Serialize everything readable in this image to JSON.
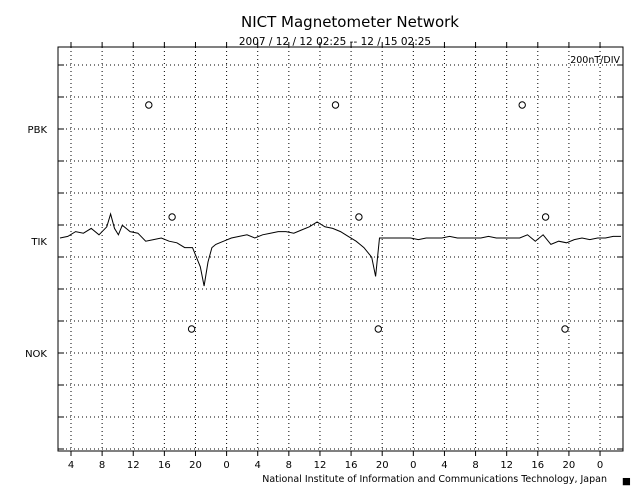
{
  "chart_data": {
    "type": "line",
    "title": "NICT Magnetometer Network",
    "subtitle": "2007 / 12 / 12   02:25 -- 12 / 15   02:25",
    "scale_label": "200nT/DIV",
    "stations": [
      "PBK",
      "TIK",
      "NOK"
    ],
    "x_tick_labels": [
      "4",
      "8",
      "12",
      "16",
      "20",
      "0",
      "4",
      "8",
      "12",
      "16",
      "20",
      "0",
      "4",
      "8",
      "12",
      "16",
      "20",
      "0"
    ],
    "x_range_hours": [
      0,
      72
    ],
    "grid": true,
    "markers": {
      "PBK": [
        10,
        34,
        58
      ],
      "TIK": [
        13,
        37,
        61
      ],
      "NOK": [
        15.5,
        39.5,
        63.5
      ]
    },
    "series": [
      {
        "name": "TIK",
        "x": [
          0,
          1,
          2,
          3,
          4,
          5,
          6,
          6.5,
          7,
          7.5,
          8,
          9,
          10,
          11,
          12,
          13,
          14,
          15,
          16,
          17,
          18,
          18.5,
          19,
          19.5,
          20,
          21,
          22,
          23,
          24,
          25,
          26,
          27,
          28,
          29,
          30,
          31,
          32,
          33,
          34,
          35,
          36,
          37,
          38,
          38.5,
          39,
          40,
          40.5,
          41,
          42,
          43,
          44,
          45,
          46,
          47,
          48,
          49,
          50,
          51,
          52,
          53,
          54,
          55,
          56,
          57,
          58,
          59,
          60,
          61,
          62,
          63,
          64,
          65,
          66,
          67,
          68,
          69,
          70,
          71,
          72
        ],
        "values": [
          0,
          10,
          40,
          30,
          60,
          20,
          70,
          150,
          60,
          20,
          80,
          40,
          30,
          -20,
          -10,
          0,
          -20,
          -30,
          -60,
          -60,
          -180,
          -300,
          -150,
          -60,
          -40,
          -20,
          0,
          10,
          20,
          0,
          20,
          30,
          40,
          40,
          30,
          50,
          70,
          100,
          70,
          60,
          40,
          10,
          -20,
          -40,
          -60,
          -120,
          -240,
          0,
          0,
          0,
          0,
          0,
          -10,
          0,
          0,
          0,
          10,
          0,
          0,
          0,
          0,
          10,
          0,
          0,
          0,
          0,
          20,
          -20,
          20,
          -40,
          -20,
          -30,
          -10,
          0,
          -10,
          0,
          0,
          10,
          10
        ]
      }
    ]
  },
  "footer": {
    "institution": "National Institute of Information and Communications Technology, Japan",
    "mark": "■"
  }
}
